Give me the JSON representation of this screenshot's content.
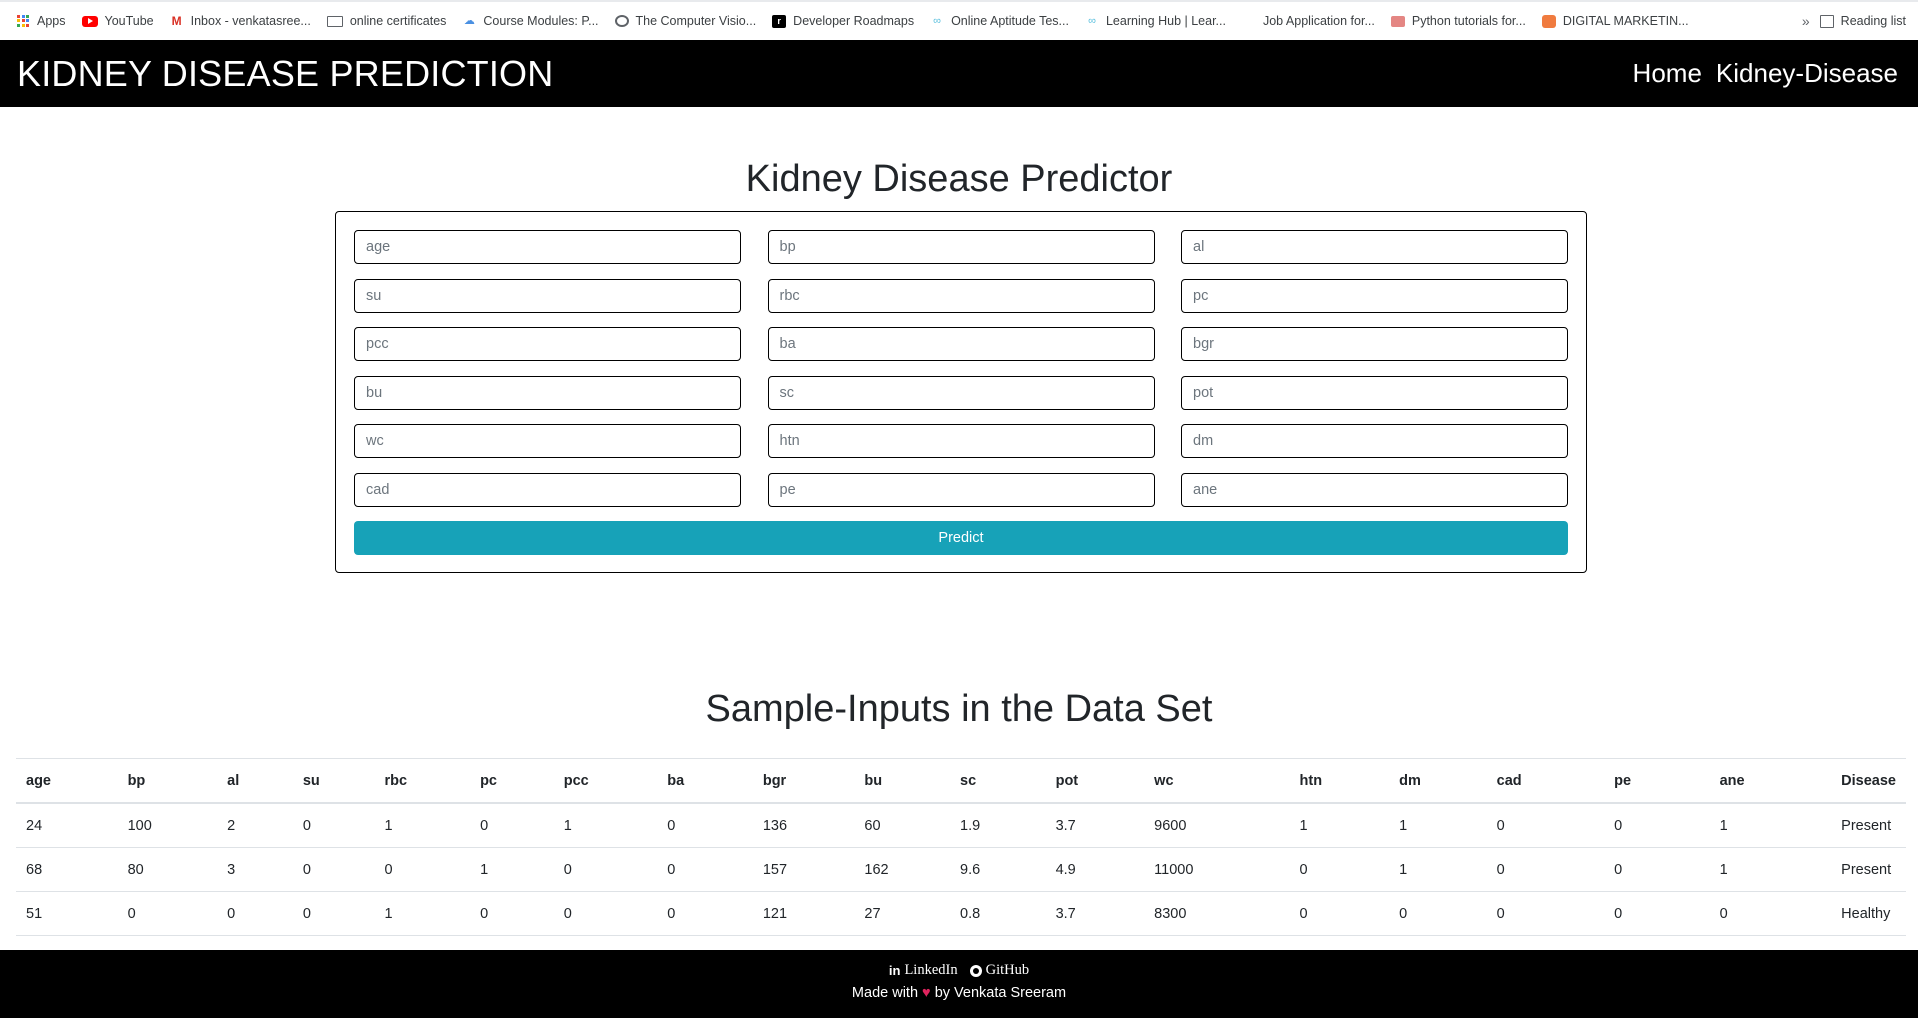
{
  "bookmarks": [
    {
      "label": "Apps",
      "icon": "apps-icon"
    },
    {
      "label": "YouTube",
      "icon": "youtube-icon"
    },
    {
      "label": "Inbox - venkatasree...",
      "icon": "gmail-icon"
    },
    {
      "label": "online certificates",
      "icon": "certificate-icon"
    },
    {
      "label": "Course Modules: P...",
      "icon": "course-icon"
    },
    {
      "label": "The Computer Visio...",
      "icon": "computer-vision-icon"
    },
    {
      "label": "Developer Roadmaps",
      "icon": "roadmap-icon"
    },
    {
      "label": "Online Aptitude Tes...",
      "icon": "link-icon"
    },
    {
      "label": "Learning Hub | Lear...",
      "icon": "link-icon"
    },
    {
      "label": "Job Application for...",
      "icon": "job-icon"
    },
    {
      "label": "Python tutorials for...",
      "icon": "python-icon"
    },
    {
      "label": "DIGITAL MARKETIN...",
      "icon": "marketing-icon"
    }
  ],
  "reading_list": "Reading list",
  "more_glyph": "»",
  "navbar": {
    "brand": "KIDNEY DISEASE PREDICTION",
    "links": [
      "Home",
      "Kidney-Disease"
    ]
  },
  "predictor": {
    "title": "Kidney Disease Predictor",
    "fields": [
      "age",
      "bp",
      "al",
      "su",
      "rbc",
      "pc",
      "pcc",
      "ba",
      "bgr",
      "bu",
      "sc",
      "pot",
      "wc",
      "htn",
      "dm",
      "cad",
      "pe",
      "ane"
    ],
    "button": "Predict",
    "button_color": "#17a2b8"
  },
  "samples": {
    "title": "Sample-Inputs in the Data Set",
    "headers": [
      "age",
      "bp",
      "al",
      "su",
      "rbc",
      "pc",
      "pcc",
      "ba",
      "bgr",
      "bu",
      "sc",
      "pot",
      "wc",
      "htn",
      "dm",
      "cad",
      "pe",
      "ane",
      "Disease"
    ],
    "rows": [
      [
        "24",
        "100",
        "2",
        "0",
        "1",
        "0",
        "1",
        "0",
        "136",
        "60",
        "1.9",
        "3.7",
        "9600",
        "1",
        "1",
        "0",
        "0",
        "1",
        "Present"
      ],
      [
        "68",
        "80",
        "3",
        "0",
        "0",
        "1",
        "0",
        "0",
        "157",
        "162",
        "9.6",
        "4.9",
        "11000",
        "0",
        "1",
        "0",
        "0",
        "1",
        "Present"
      ],
      [
        "51",
        "0",
        "0",
        "0",
        "1",
        "0",
        "0",
        "0",
        "121",
        "27",
        "0.8",
        "3.7",
        "8300",
        "0",
        "0",
        "0",
        "0",
        "0",
        "Healthy"
      ]
    ]
  },
  "footer": {
    "linkedin": "LinkedIn",
    "github": "GitHub",
    "made_prefix": "Made with",
    "heart": "♥",
    "made_suffix": "by Venkata Sreeram"
  }
}
